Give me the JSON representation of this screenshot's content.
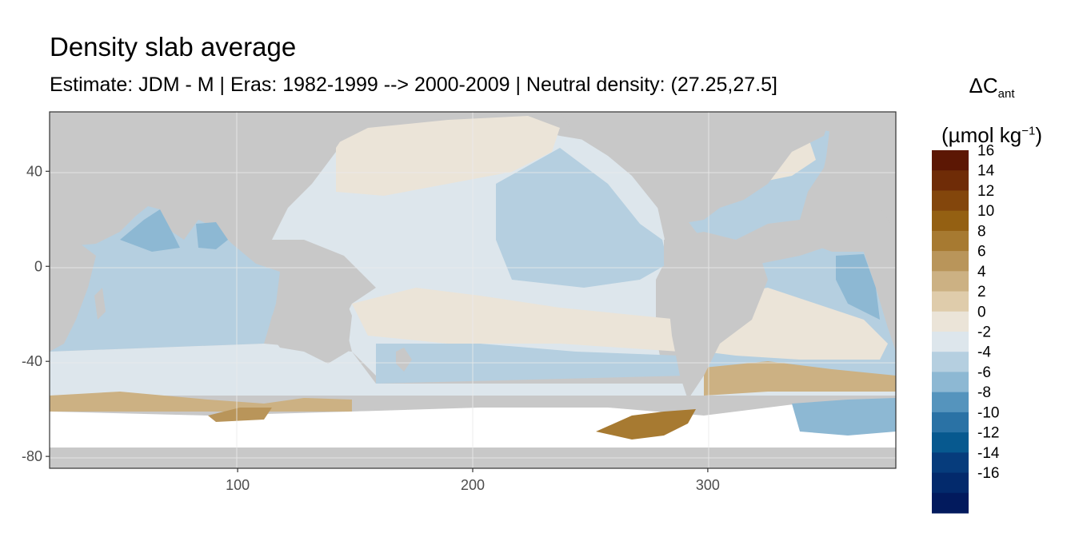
{
  "title": "Density slab average",
  "subtitle": "Estimate: JDM - M | Eras: 1982-1999 --> 2000-2009 | Neutral density: (27.25,27.5]",
  "legend": {
    "title_prefix": "ΔC",
    "title_sub": "ant",
    "unit_prefix": "(µmol kg",
    "unit_sup": "−1",
    "unit_suffix": ")",
    "bins": [
      {
        "label": "16",
        "color": "#5c1704"
      },
      {
        "label": "14",
        "color": "#6f2c07"
      },
      {
        "label": "12",
        "color": "#83460c"
      },
      {
        "label": "10",
        "color": "#946012"
      },
      {
        "label": "8",
        "color": "#a77a31"
      },
      {
        "label": "6",
        "color": "#b9955a"
      },
      {
        "label": "4",
        "color": "#ccb183"
      },
      {
        "label": "2",
        "color": "#dfccab"
      },
      {
        "label": "0",
        "color": "#ebe4d8"
      },
      {
        "label": "-2",
        "color": "#dde6ec"
      },
      {
        "label": "-4",
        "color": "#b5cfe0"
      },
      {
        "label": "-6",
        "color": "#8db8d3"
      },
      {
        "label": "-8",
        "color": "#5594bd"
      },
      {
        "label": "-10",
        "color": "#2a72a5"
      },
      {
        "label": "-12",
        "color": "#07598f"
      },
      {
        "label": "-14",
        "color": "#063c7c"
      },
      {
        "label": "-16",
        "color": "#032a6c"
      },
      {
        "label": "",
        "color": "#021a5d"
      }
    ]
  },
  "map": {
    "xlim": [
      20,
      380
    ],
    "ylim": [
      -85,
      65
    ],
    "x_ticks": [
      100,
      200,
      300
    ],
    "y_ticks": [
      40,
      0,
      -40,
      -80
    ],
    "land_color": "#c8c8c8",
    "missing_color": "#ffffff"
  }
}
